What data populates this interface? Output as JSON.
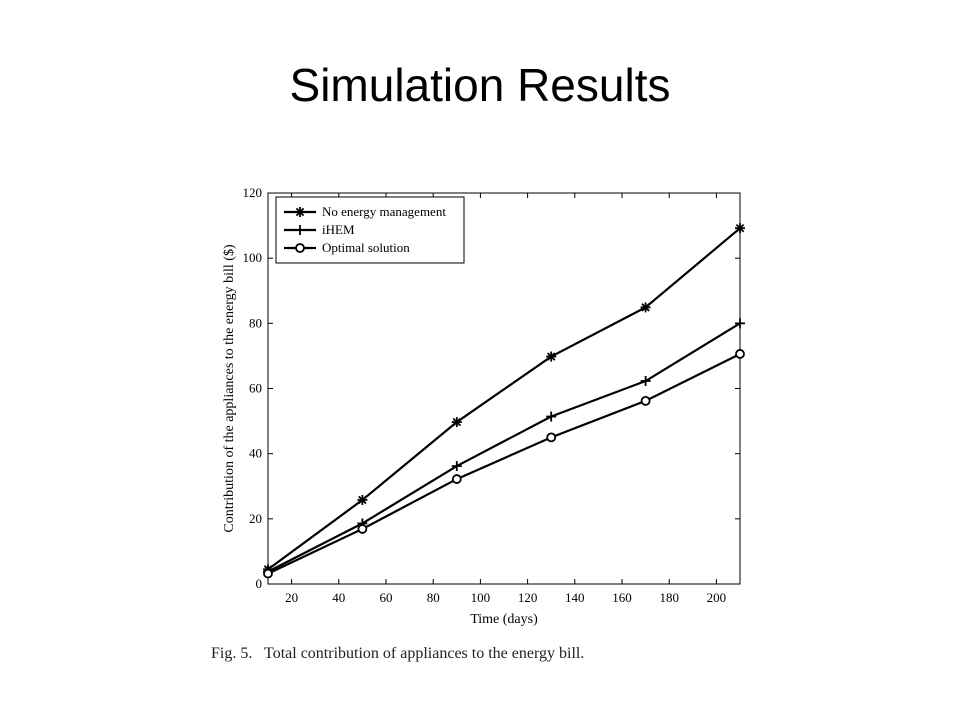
{
  "slide": {
    "title": "Simulation Results",
    "caption": "Fig. 5.   Total contribution of appliances to the energy bill."
  },
  "chart_data": {
    "type": "line",
    "title": "",
    "xlabel": "Time (days)",
    "ylabel": "Contribution of the appliances to the energy bill ($)",
    "xlim": [
      10,
      210
    ],
    "ylim": [
      0,
      120
    ],
    "xticks": [
      20,
      40,
      60,
      80,
      100,
      120,
      140,
      160,
      180,
      200
    ],
    "yticks": [
      0,
      20,
      40,
      60,
      80,
      100,
      120
    ],
    "grid": false,
    "legend_position": "top-left",
    "x": [
      10,
      50,
      90,
      130,
      170,
      210
    ],
    "series": [
      {
        "name": "No energy management",
        "marker": "asterisk",
        "values": [
          4.5,
          25.8,
          49.7,
          69.8,
          84.9,
          109.2
        ]
      },
      {
        "name": "iHEM",
        "marker": "plus",
        "values": [
          3.8,
          18.6,
          36.2,
          51.4,
          62.3,
          80.0
        ]
      },
      {
        "name": "Optimal solution",
        "marker": "circle",
        "values": [
          3.2,
          16.9,
          32.2,
          45.0,
          56.2,
          70.6
        ]
      }
    ],
    "colors": {
      "line": "#000000"
    }
  }
}
